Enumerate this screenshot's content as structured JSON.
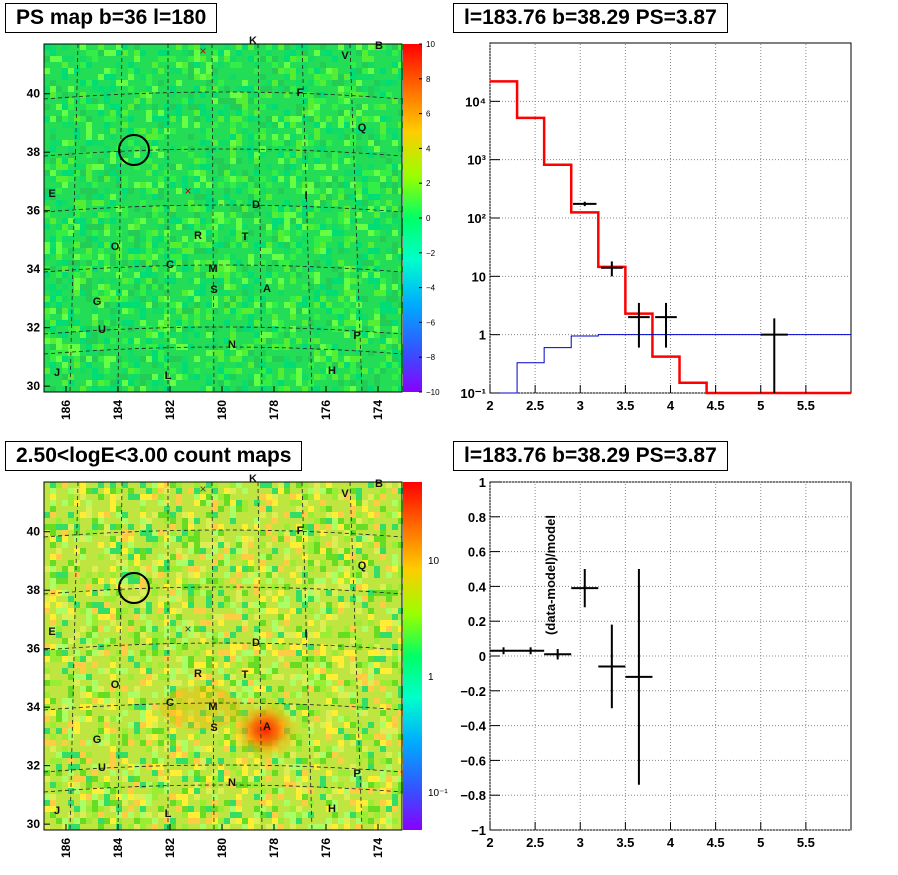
{
  "panels": {
    "map_top": {
      "title": "PS map b=36 l=180",
      "colorbar_ticks": [
        "10",
        "8",
        "6",
        "4",
        "2",
        "0",
        "−2",
        "−4",
        "−6",
        "−8",
        "−10"
      ],
      "colorbar_values": [
        10,
        8,
        6,
        4,
        2,
        0,
        -2,
        -4,
        -6,
        -8,
        -10
      ]
    },
    "map_bottom": {
      "title": "2.50<logE<3.00 count maps",
      "colorbar_ticks": [
        "10",
        "1",
        "10⁻¹"
      ]
    },
    "spectrum": {
      "title": "l=183.76 b=38.29 PS=3.87"
    },
    "residual": {
      "title": "l=183.76 b=38.29 PS=3.87"
    }
  },
  "map_axes": {
    "x_ticks": [
      "186",
      "184",
      "182",
      "180",
      "178",
      "176",
      "174"
    ],
    "y_ticks": [
      "40",
      "38",
      "36",
      "34",
      "32",
      "30"
    ],
    "y_values": [
      40,
      38,
      36,
      34,
      32,
      30
    ]
  },
  "map_labels": [
    "K",
    "B",
    "V",
    "F",
    "Q",
    "E",
    "D",
    "I",
    "R",
    "T",
    "O",
    "C",
    "M",
    "S",
    "A",
    "G",
    "U",
    "P",
    "N",
    "J",
    "L",
    "H"
  ],
  "map_markers": {
    "circle": "circle-marker",
    "cross": "×"
  },
  "chart_data": [
    {
      "type": "heatmap",
      "title": "PS map b=36 l=180",
      "xlabel": "",
      "ylabel": "",
      "xlim": [
        187,
        173
      ],
      "ylim": [
        29.8,
        41.7
      ],
      "zlim": [
        -10,
        10
      ],
      "x_ticks": [
        186,
        184,
        182,
        180,
        178,
        176,
        174
      ],
      "y_ticks": [
        30,
        32,
        34,
        36,
        38,
        40
      ],
      "annotations": [
        "K",
        "B",
        "V",
        "F",
        "Q",
        "E",
        "D",
        "I",
        "R",
        "T",
        "O",
        "C",
        "M",
        "S",
        "A",
        "G",
        "U",
        "P",
        "N",
        "J",
        "L",
        "H"
      ]
    },
    {
      "type": "heatmap",
      "title": "2.50<logE<3.00 count maps",
      "xlabel": "",
      "ylabel": "",
      "xlim": [
        187,
        173
      ],
      "ylim": [
        29.8,
        41.7
      ],
      "zscale": "log",
      "z_ticks": [
        "10",
        "1",
        "10⁻¹"
      ],
      "x_ticks": [
        186,
        184,
        182,
        180,
        178,
        176,
        174
      ],
      "y_ticks": [
        30,
        32,
        34,
        36,
        38,
        40
      ],
      "annotations": [
        "K",
        "B",
        "V",
        "F",
        "Q",
        "E",
        "D",
        "I",
        "R",
        "T",
        "O",
        "C",
        "M",
        "S",
        "A",
        "G",
        "U",
        "P",
        "N",
        "J",
        "L",
        "H"
      ]
    },
    {
      "type": "line",
      "title": "l=183.76 b=38.29 PS=3.87",
      "xlabel": "",
      "ylabel": "",
      "xlim": [
        2,
        6
      ],
      "ylim": [
        0.1,
        100000
      ],
      "yscale": "log",
      "x_ticks": [
        "2",
        "2.5",
        "3",
        "3.5",
        "4",
        "4.5",
        "5",
        "5.5"
      ],
      "y_ticks": [
        "10⁻¹",
        "1",
        "10",
        "10²",
        "10³",
        "10⁴"
      ],
      "series": [
        {
          "color": "#ff0000",
          "style": "step",
          "edges": [
            2.0,
            2.3,
            2.6,
            2.9,
            3.2,
            3.5,
            3.8,
            4.1,
            4.4,
            4.7,
            5.0,
            5.3,
            5.6,
            6.0
          ],
          "values": [
            22000,
            5200,
            820,
            125,
            14.5,
            2.3,
            0.42,
            0.15,
            0.1,
            0.1,
            0.1,
            0.1,
            0.1
          ]
        },
        {
          "color": "#0000cc",
          "style": "step",
          "edges": [
            2.0,
            2.3,
            2.6,
            2.9,
            3.2,
            3.5,
            3.8,
            4.1,
            4.4,
            4.7,
            5.0,
            5.3,
            5.6,
            6.0
          ],
          "values": [
            0.1,
            0.33,
            0.6,
            0.95,
            1.0,
            1.0,
            1.0,
            1.0,
            1.0,
            1.0,
            1.0,
            1.0,
            1.0
          ]
        },
        {
          "color": "#000000",
          "style": "errorbar",
          "points": [
            {
              "x": 3.05,
              "xerr": 0.13,
              "y": 175,
              "ylo": 160,
              "yhi": 190
            },
            {
              "x": 3.35,
              "xerr": 0.12,
              "y": 14,
              "ylo": 10,
              "yhi": 18
            },
            {
              "x": 3.65,
              "xerr": 0.12,
              "y": 2.0,
              "ylo": 0.6,
              "yhi": 3.5
            },
            {
              "x": 3.95,
              "xerr": 0.12,
              "y": 2.0,
              "ylo": 0.6,
              "yhi": 3.5
            },
            {
              "x": 5.15,
              "xerr": 0.15,
              "y": 1.0,
              "ylo": 0.1,
              "yhi": 1.9
            }
          ]
        }
      ]
    },
    {
      "type": "scatter",
      "title": "l=183.76 b=38.29 PS=3.87",
      "xlabel": "",
      "ylabel": "(data-model)/model",
      "xlim": [
        2,
        6
      ],
      "ylim": [
        -1,
        1
      ],
      "x_ticks": [
        "2",
        "2.5",
        "3",
        "3.5",
        "4",
        "4.5",
        "5",
        "5.5"
      ],
      "y_ticks": [
        "1",
        "0.8",
        "0.6",
        "0.4",
        "0.2",
        "0",
        "−0.2",
        "−0.4",
        "−0.6",
        "−0.8",
        "−1"
      ],
      "points": [
        {
          "x": 2.15,
          "xerr": 0.15,
          "y": 0.03,
          "yerr": 0.02
        },
        {
          "x": 2.45,
          "xerr": 0.15,
          "y": 0.03,
          "yerr": 0.02
        },
        {
          "x": 2.75,
          "xerr": 0.15,
          "y": 0.01,
          "yerr": 0.03
        },
        {
          "x": 3.05,
          "xerr": 0.15,
          "y": 0.39,
          "yerr": 0.11
        },
        {
          "x": 3.35,
          "xerr": 0.15,
          "y": -0.06,
          "yerr": 0.24
        },
        {
          "x": 3.65,
          "xerr": 0.15,
          "y": -0.12,
          "yerr": 0.62
        }
      ]
    }
  ]
}
